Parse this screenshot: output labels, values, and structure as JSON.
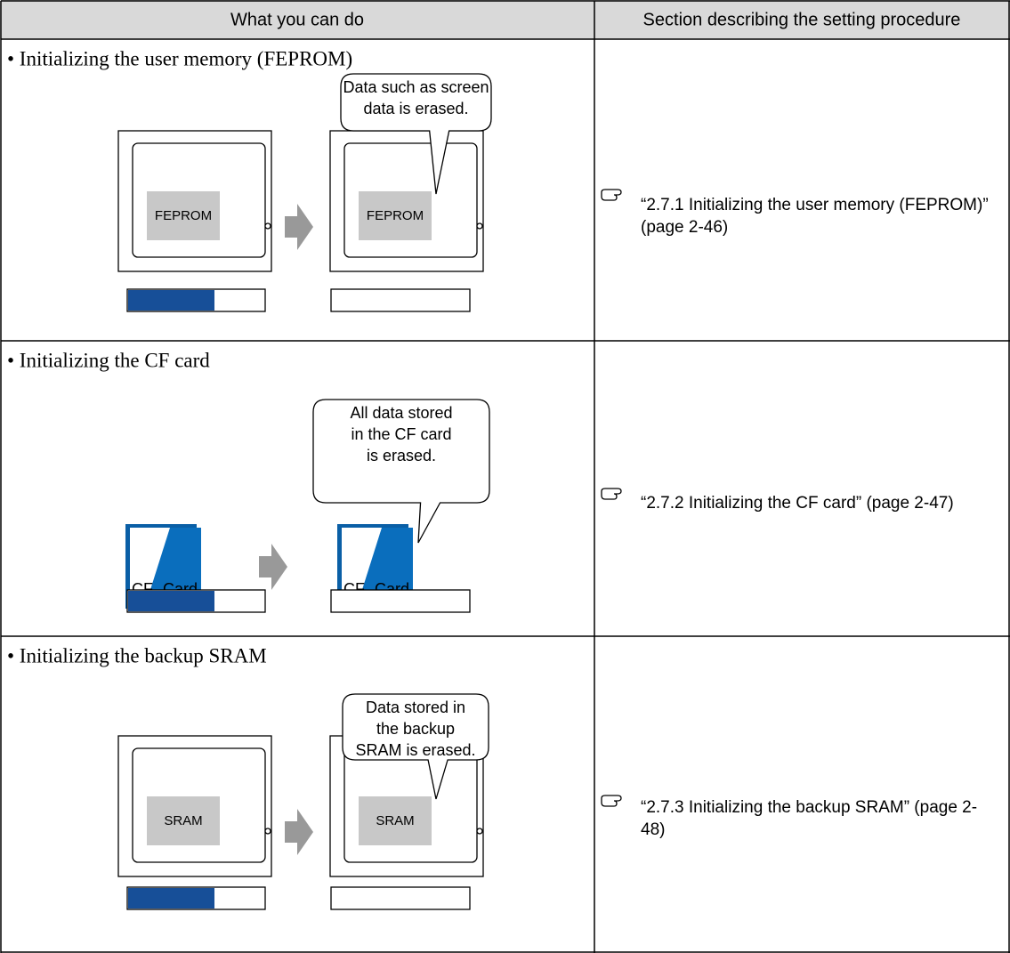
{
  "table": {
    "header": [
      "What you can do",
      "Section describing the setting procedure"
    ],
    "rows": [
      {
        "title": "• Initializing the user memory (FEPROM)",
        "callout": [
          "Data such as screen",
          "data is erased."
        ],
        "labels": [
          "FEPROM",
          "FEPROM"
        ],
        "reference": "“2.7.1 Initializing the user memory (FEPROM)” (page 2-46)"
      },
      {
        "title": "• Initializing the CF card",
        "callout": [
          "All data stored",
          "in the CF card",
          "is erased."
        ],
        "labels": [
          "CF",
          "Card",
          "CF",
          "Card"
        ],
        "reference": "“2.7.2 Initializing the CF card” (page 2-47)"
      },
      {
        "title": "• Initializing the backup SRAM",
        "callout": [
          "Data stored in",
          "the backup",
          "SRAM is erased."
        ],
        "labels": [
          "SRAM",
          "SRAM"
        ],
        "reference": "“2.7.3 Initializing the backup SRAM” (page 2-48)"
      }
    ]
  }
}
